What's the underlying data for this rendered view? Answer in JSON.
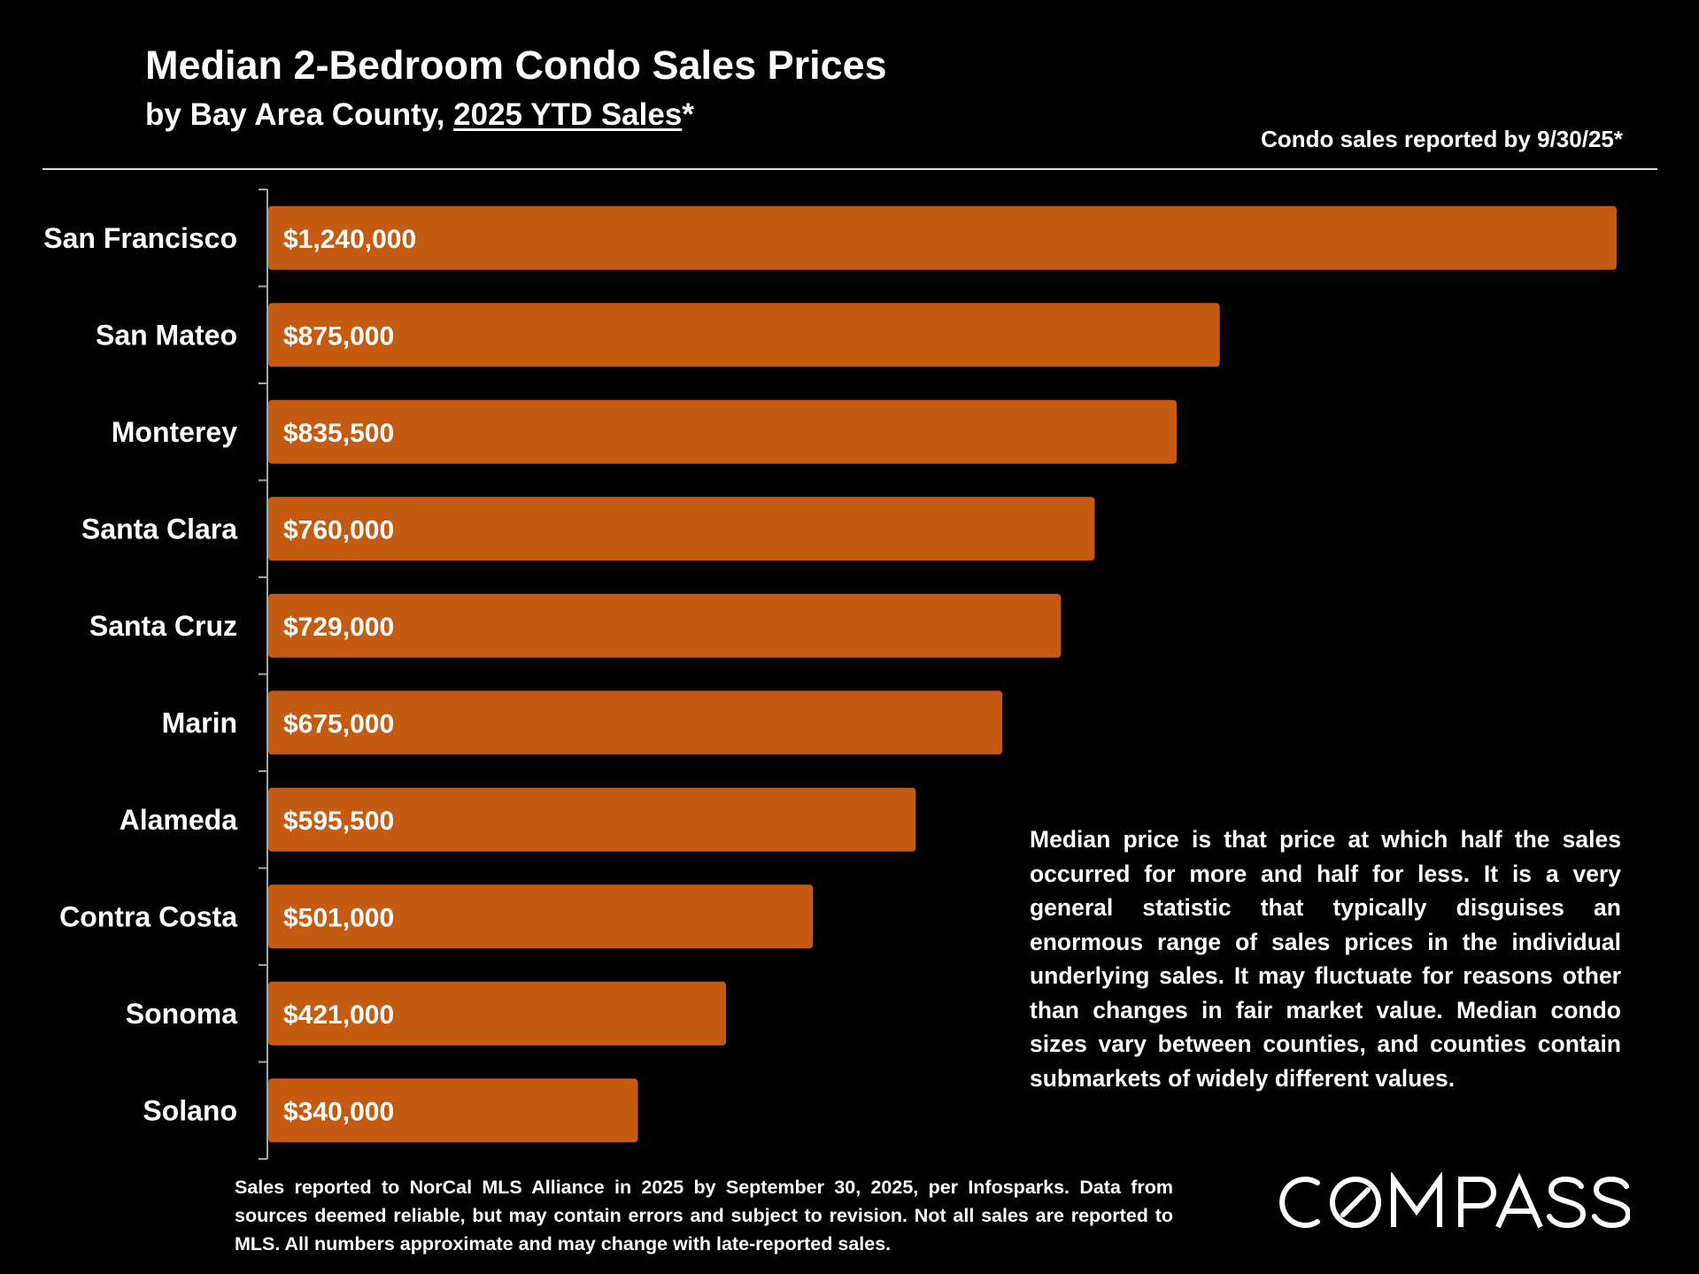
{
  "header": {
    "title": "Median 2-Bedroom Condo Sales Prices",
    "subtitle_prefix": "by Bay Area County, ",
    "subtitle_underlined": "2025 YTD Sales",
    "subtitle_suffix": "*",
    "report_note": "Condo sales reported by 9/30/25*"
  },
  "chart_data": {
    "type": "bar",
    "orientation": "horizontal",
    "title": "Median 2-Bedroom Condo Sales Prices",
    "subtitle": "by Bay Area County, 2025 YTD Sales*",
    "categories": [
      "San Francisco",
      "San Mateo",
      "Monterey",
      "Santa Clara",
      "Santa Cruz",
      "Marin",
      "Alameda",
      "Contra Costa",
      "Sonoma",
      "Solano"
    ],
    "values": [
      1240000,
      875000,
      835500,
      760000,
      729000,
      675000,
      595500,
      501000,
      421000,
      340000
    ],
    "data_labels": [
      "$1,240,000",
      "$875,000",
      "$835,500",
      "$760,000",
      "$729,000",
      "$675,000",
      "$595,500",
      "$501,000",
      "$421,000",
      "$340,000"
    ],
    "bar_color": "#c55a11",
    "xlim": [
      0,
      1240000
    ],
    "grid": false,
    "legend": "none"
  },
  "note": "Median price is that price at which half the sales occurred for more and half for less. It is a very general statistic that typically disguises an enormous range of sales prices in the individual underlying sales. It may fluctuate for reasons other than changes in fair market value. Median condo sizes vary between counties, and counties contain submarkets of widely different values.",
  "footer": "Sales reported to NorCal MLS Alliance in 2025 by September 30, 2025, per Infosparks. Data from sources deemed reliable, but may contain errors and subject to revision. Not all sales are reported to MLS. All numbers approximate and may change with late-reported sales.",
  "logo": {
    "text": "COMPASS",
    "icon": "compass-logo"
  },
  "colors": {
    "background": "#000000",
    "text": "#ffffff",
    "bar": "#c55a11",
    "axis": "#a6a6a6"
  }
}
